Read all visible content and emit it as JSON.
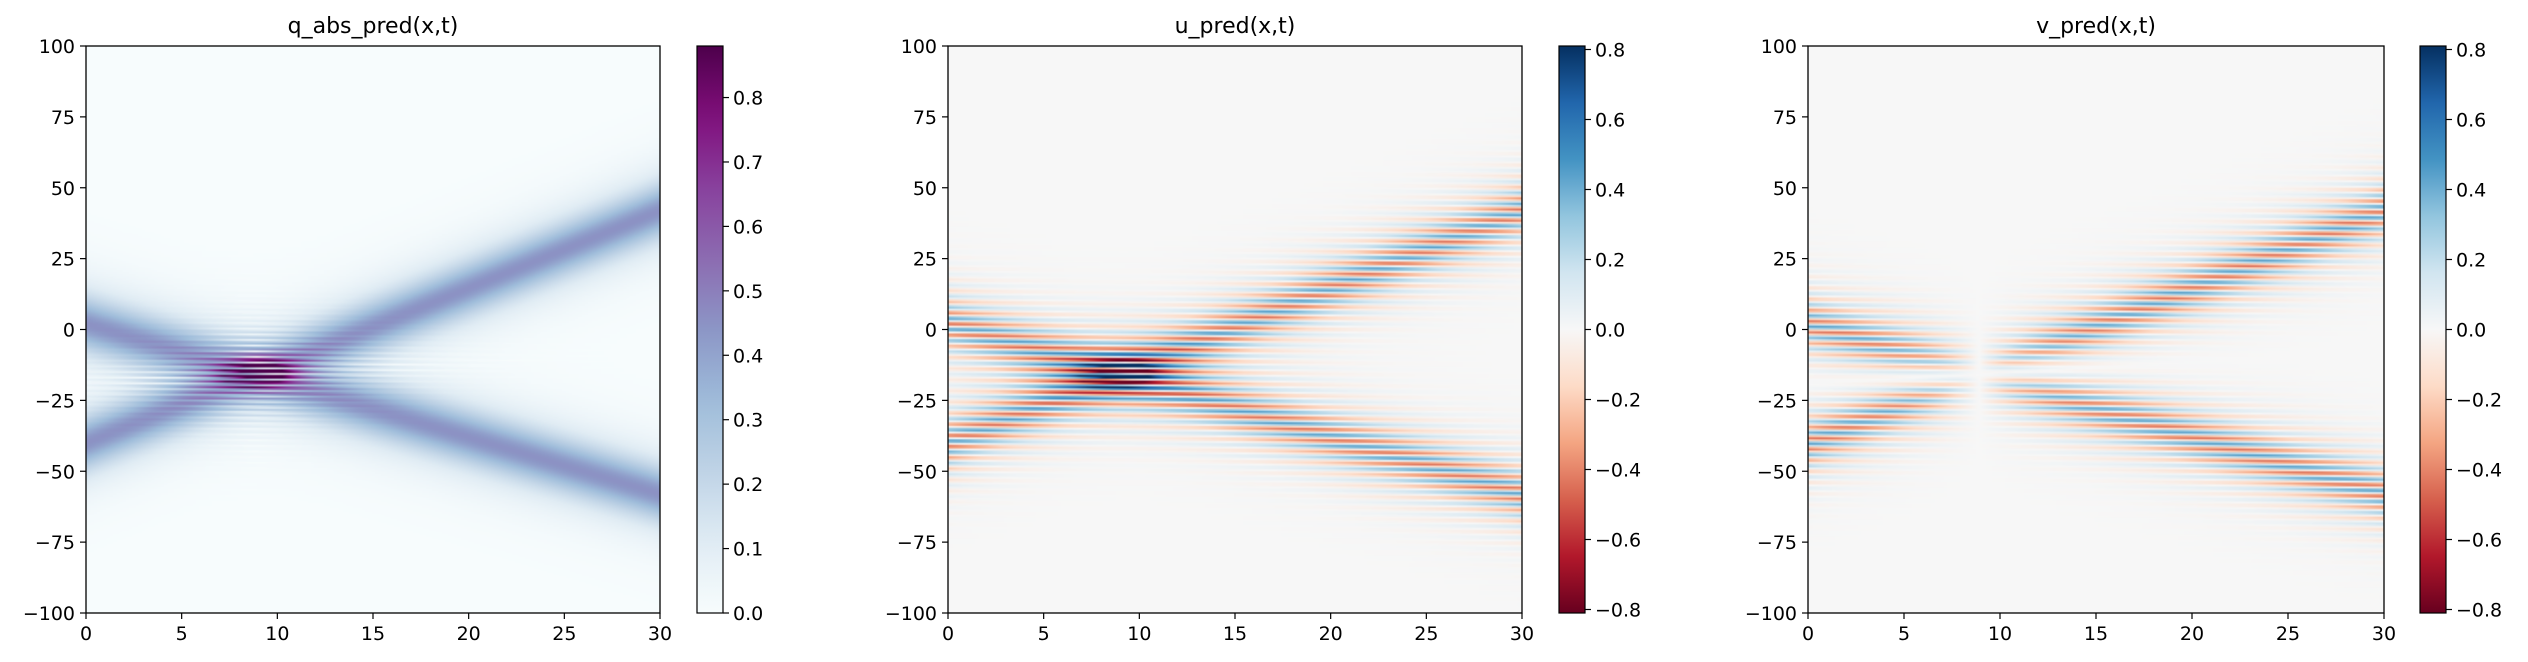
{
  "chart_data": [
    {
      "type": "heatmap",
      "title": "q_abs_pred(x,t)",
      "quantity": "abs",
      "colormap": "BuPu",
      "xlim": [
        0,
        30
      ],
      "ylim": [
        -100,
        100
      ],
      "x_ticks": [
        0,
        5,
        10,
        15,
        20,
        25,
        30
      ],
      "y_ticks": [
        -100,
        -75,
        -50,
        -25,
        0,
        25,
        50,
        75,
        100
      ],
      "x_tick_labels": [
        "0",
        "5",
        "10",
        "15",
        "20",
        "25",
        "30"
      ],
      "y_tick_labels": [
        "−100",
        "−75",
        "−50",
        "−25",
        "0",
        "25",
        "50",
        "75",
        "100"
      ],
      "colorbar": {
        "range": [
          0,
          0.88
        ],
        "ticks": [
          0,
          0.1,
          0.2,
          0.3,
          0.4,
          0.5,
          0.6,
          0.7,
          0.8
        ],
        "tick_labels": [
          "0.0",
          "0.1",
          "0.2",
          "0.3",
          "0.4",
          "0.5",
          "0.6",
          "0.7",
          "0.8"
        ]
      }
    },
    {
      "type": "heatmap",
      "title": "u_pred(x,t)",
      "quantity": "real",
      "colormap": "RdBu",
      "xlim": [
        0,
        30
      ],
      "ylim": [
        -100,
        100
      ],
      "x_ticks": [
        0,
        5,
        10,
        15,
        20,
        25,
        30
      ],
      "y_ticks": [
        -100,
        -75,
        -50,
        -25,
        0,
        25,
        50,
        75,
        100
      ],
      "x_tick_labels": [
        "0",
        "5",
        "10",
        "15",
        "20",
        "25",
        "30"
      ],
      "y_tick_labels": [
        "−100",
        "−75",
        "−50",
        "−25",
        "0",
        "25",
        "50",
        "75",
        "100"
      ],
      "colorbar": {
        "range": [
          -0.81,
          0.81
        ],
        "ticks": [
          -0.8,
          -0.6,
          -0.4,
          -0.2,
          0,
          0.2,
          0.4,
          0.6,
          0.8
        ],
        "tick_labels": [
          "−0.8",
          "−0.6",
          "−0.4",
          "−0.2",
          "0.0",
          "0.2",
          "0.4",
          "0.6",
          "0.8"
        ]
      }
    },
    {
      "type": "heatmap",
      "title": "v_pred(x,t)",
      "quantity": "imag",
      "colormap": "RdBu",
      "xlim": [
        0,
        30
      ],
      "ylim": [
        -100,
        100
      ],
      "x_ticks": [
        0,
        5,
        10,
        15,
        20,
        25,
        30
      ],
      "y_ticks": [
        -100,
        -75,
        -50,
        -25,
        0,
        25,
        50,
        75,
        100
      ],
      "x_tick_labels": [
        "0",
        "5",
        "10",
        "15",
        "20",
        "25",
        "30"
      ],
      "y_tick_labels": [
        "−100",
        "−75",
        "−50",
        "−25",
        "0",
        "25",
        "50",
        "75",
        "100"
      ],
      "colorbar": {
        "range": [
          -0.81,
          0.81
        ],
        "ticks": [
          -0.8,
          -0.6,
          -0.4,
          -0.2,
          0,
          0.2,
          0.4,
          0.6,
          0.8
        ],
        "tick_labels": [
          "−0.8",
          "−0.6",
          "−0.4",
          "−0.2",
          "0.0",
          "0.2",
          "0.4",
          "0.6",
          "0.8"
        ]
      }
    }
  ],
  "field": {
    "solitons": [
      {
        "x0": 2,
        "velocity": -2.0,
        "amplitude": 0.45,
        "width": 6.5,
        "wavenumber": 1.6
      },
      {
        "x0": -40,
        "velocity": 2.73,
        "amplitude": 0.45,
        "width": 6.5,
        "wavenumber": -1.6
      }
    ],
    "collision": {
      "t": 9,
      "x": -15
    }
  }
}
